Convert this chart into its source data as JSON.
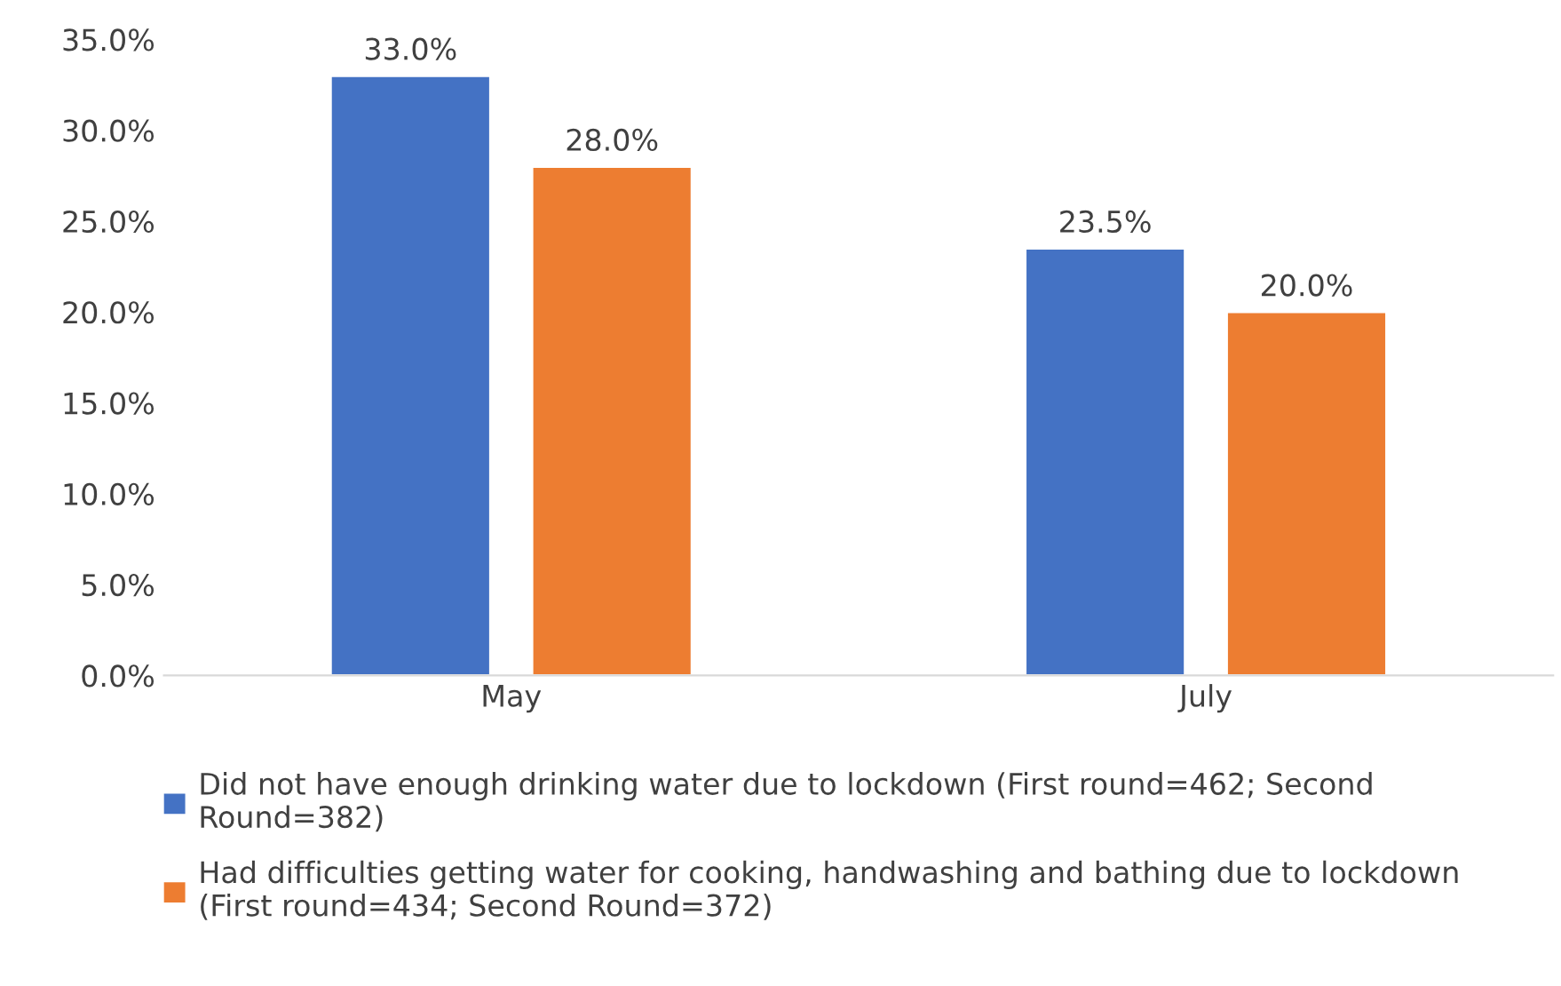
{
  "chart_data": {
    "type": "bar",
    "categories": [
      "May",
      "July"
    ],
    "series": [
      {
        "name": "Did not have enough drinking water due to lockdown (First round=462; Second Round=382)",
        "color": "#4472c4",
        "values": [
          33.0,
          23.5
        ],
        "value_labels": [
          "33.0%",
          "23.5%"
        ]
      },
      {
        "name": "Had difficulties getting water for cooking, handwashing and bathing due to lockdown (First round=434; Second Round=372)",
        "color": "#ed7d31",
        "values": [
          28.0,
          20.0
        ],
        "value_labels": [
          "28.0%",
          "20.0%"
        ]
      }
    ],
    "ylim": [
      0,
      35
    ],
    "yticks": [
      {
        "value": 0,
        "label": "0.0%"
      },
      {
        "value": 5,
        "label": "5.0%"
      },
      {
        "value": 10,
        "label": "10.0%"
      },
      {
        "value": 15,
        "label": "15.0%"
      },
      {
        "value": 20,
        "label": "20.0%"
      },
      {
        "value": 25,
        "label": "25.0%"
      },
      {
        "value": 30,
        "label": "30.0%"
      },
      {
        "value": 35,
        "label": "35.0%"
      }
    ],
    "grid": false,
    "legend": "bottom"
  }
}
